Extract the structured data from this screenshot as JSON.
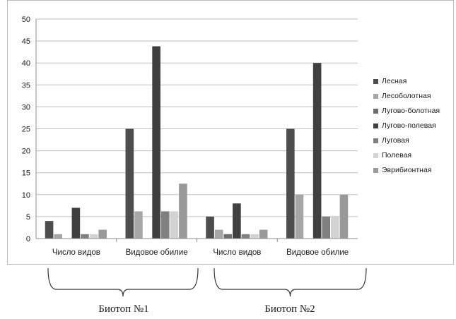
{
  "chart_data": {
    "type": "bar",
    "title": "",
    "xlabel": "",
    "ylabel": "",
    "ylim": [
      0,
      50
    ],
    "yticks": [
      0,
      5,
      10,
      15,
      20,
      25,
      30,
      35,
      40,
      45,
      50
    ],
    "grid": true,
    "legend_position": "right",
    "categories": [
      "Число видов",
      "Видовое обилие",
      "Число видов",
      "Видовое обилие"
    ],
    "groups": [
      {
        "label": "Биотоп №1",
        "categories": [
          0,
          1
        ]
      },
      {
        "label": "Биотоп №2",
        "categories": [
          2,
          3
        ]
      }
    ],
    "series": [
      {
        "name": "Лесная",
        "color": "#4d4d4d",
        "values": [
          4,
          25,
          5,
          25
        ]
      },
      {
        "name": "Лесоболотная",
        "color": "#a6a6a6",
        "values": [
          1,
          6.2,
          2,
          10
        ]
      },
      {
        "name": "Лугово-болотная",
        "color": "#6e6e6e",
        "values": [
          0,
          0,
          1,
          0
        ]
      },
      {
        "name": "Лугово-полевая",
        "color": "#404040",
        "values": [
          7,
          43.8,
          8,
          40
        ]
      },
      {
        "name": "Луговая",
        "color": "#808080",
        "values": [
          1,
          6.2,
          1,
          5
        ]
      },
      {
        "name": "Полевая",
        "color": "#d3d3d3",
        "values": [
          1,
          6.2,
          1,
          5
        ]
      },
      {
        "name": "Эврибионтная",
        "color": "#999999",
        "values": [
          2,
          12.5,
          2,
          10
        ]
      }
    ]
  }
}
